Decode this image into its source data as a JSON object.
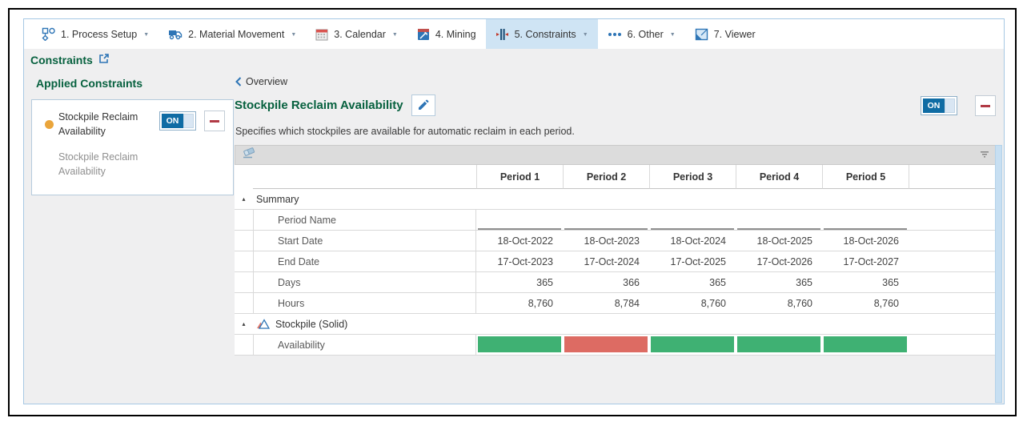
{
  "toolbar": {
    "tabs": [
      {
        "label": "1. Process Setup",
        "icon": "process-setup-icon",
        "dropdown": true,
        "active": false
      },
      {
        "label": "2. Material Movement",
        "icon": "material-movement-icon",
        "dropdown": true,
        "active": false
      },
      {
        "label": "3. Calendar",
        "icon": "calendar-icon",
        "dropdown": true,
        "active": false
      },
      {
        "label": "4. Mining",
        "icon": "mining-icon",
        "dropdown": false,
        "active": false
      },
      {
        "label": "5. Constraints",
        "icon": "constraints-icon",
        "dropdown": true,
        "active": true
      },
      {
        "label": "6. Other",
        "icon": "ellipsis-icon",
        "dropdown": true,
        "active": false
      },
      {
        "label": "7. Viewer",
        "icon": "viewer-icon",
        "dropdown": false,
        "active": false
      }
    ]
  },
  "page": {
    "title": "Constraints"
  },
  "sidebar": {
    "heading": "Applied Constraints",
    "card": {
      "title": "Stockpile Reclaim Availability",
      "subtitle": "Stockpile Reclaim Availability",
      "toggle_label": "ON",
      "bullet_color": "#EAA53B"
    }
  },
  "main": {
    "back_link": "Overview",
    "title": "Stockpile Reclaim Availability",
    "description": "Specifies which stockpiles are available for automatic reclaim in each period.",
    "toggle_label": "ON"
  },
  "table": {
    "period_headers": [
      "Period 1",
      "Period 2",
      "Period 3",
      "Period 4",
      "Period 5"
    ],
    "groups": [
      {
        "label": "Summary",
        "icon": null,
        "rows": [
          {
            "label": "Period Name",
            "type": "input",
            "values": [
              "",
              "",
              "",
              "",
              ""
            ]
          },
          {
            "label": "Start Date",
            "type": "text",
            "values": [
              "18-Oct-2022",
              "18-Oct-2023",
              "18-Oct-2024",
              "18-Oct-2025",
              "18-Oct-2026"
            ]
          },
          {
            "label": "End Date",
            "type": "text",
            "values": [
              "17-Oct-2023",
              "17-Oct-2024",
              "17-Oct-2025",
              "17-Oct-2026",
              "17-Oct-2027"
            ]
          },
          {
            "label": "Days",
            "type": "text",
            "values": [
              "365",
              "366",
              "365",
              "365",
              "365"
            ]
          },
          {
            "label": "Hours",
            "type": "text",
            "values": [
              "8,760",
              "8,784",
              "8,760",
              "8,760",
              "8,760"
            ]
          }
        ]
      },
      {
        "label": "Stockpile (Solid)",
        "icon": "stockpile-icon",
        "rows": [
          {
            "label": "Availability",
            "type": "availability",
            "values": [
              "on",
              "off",
              "on",
              "on",
              "on"
            ]
          }
        ]
      }
    ],
    "availability_colors": {
      "on": "#3FB173",
      "off": "#DD6B63"
    }
  }
}
